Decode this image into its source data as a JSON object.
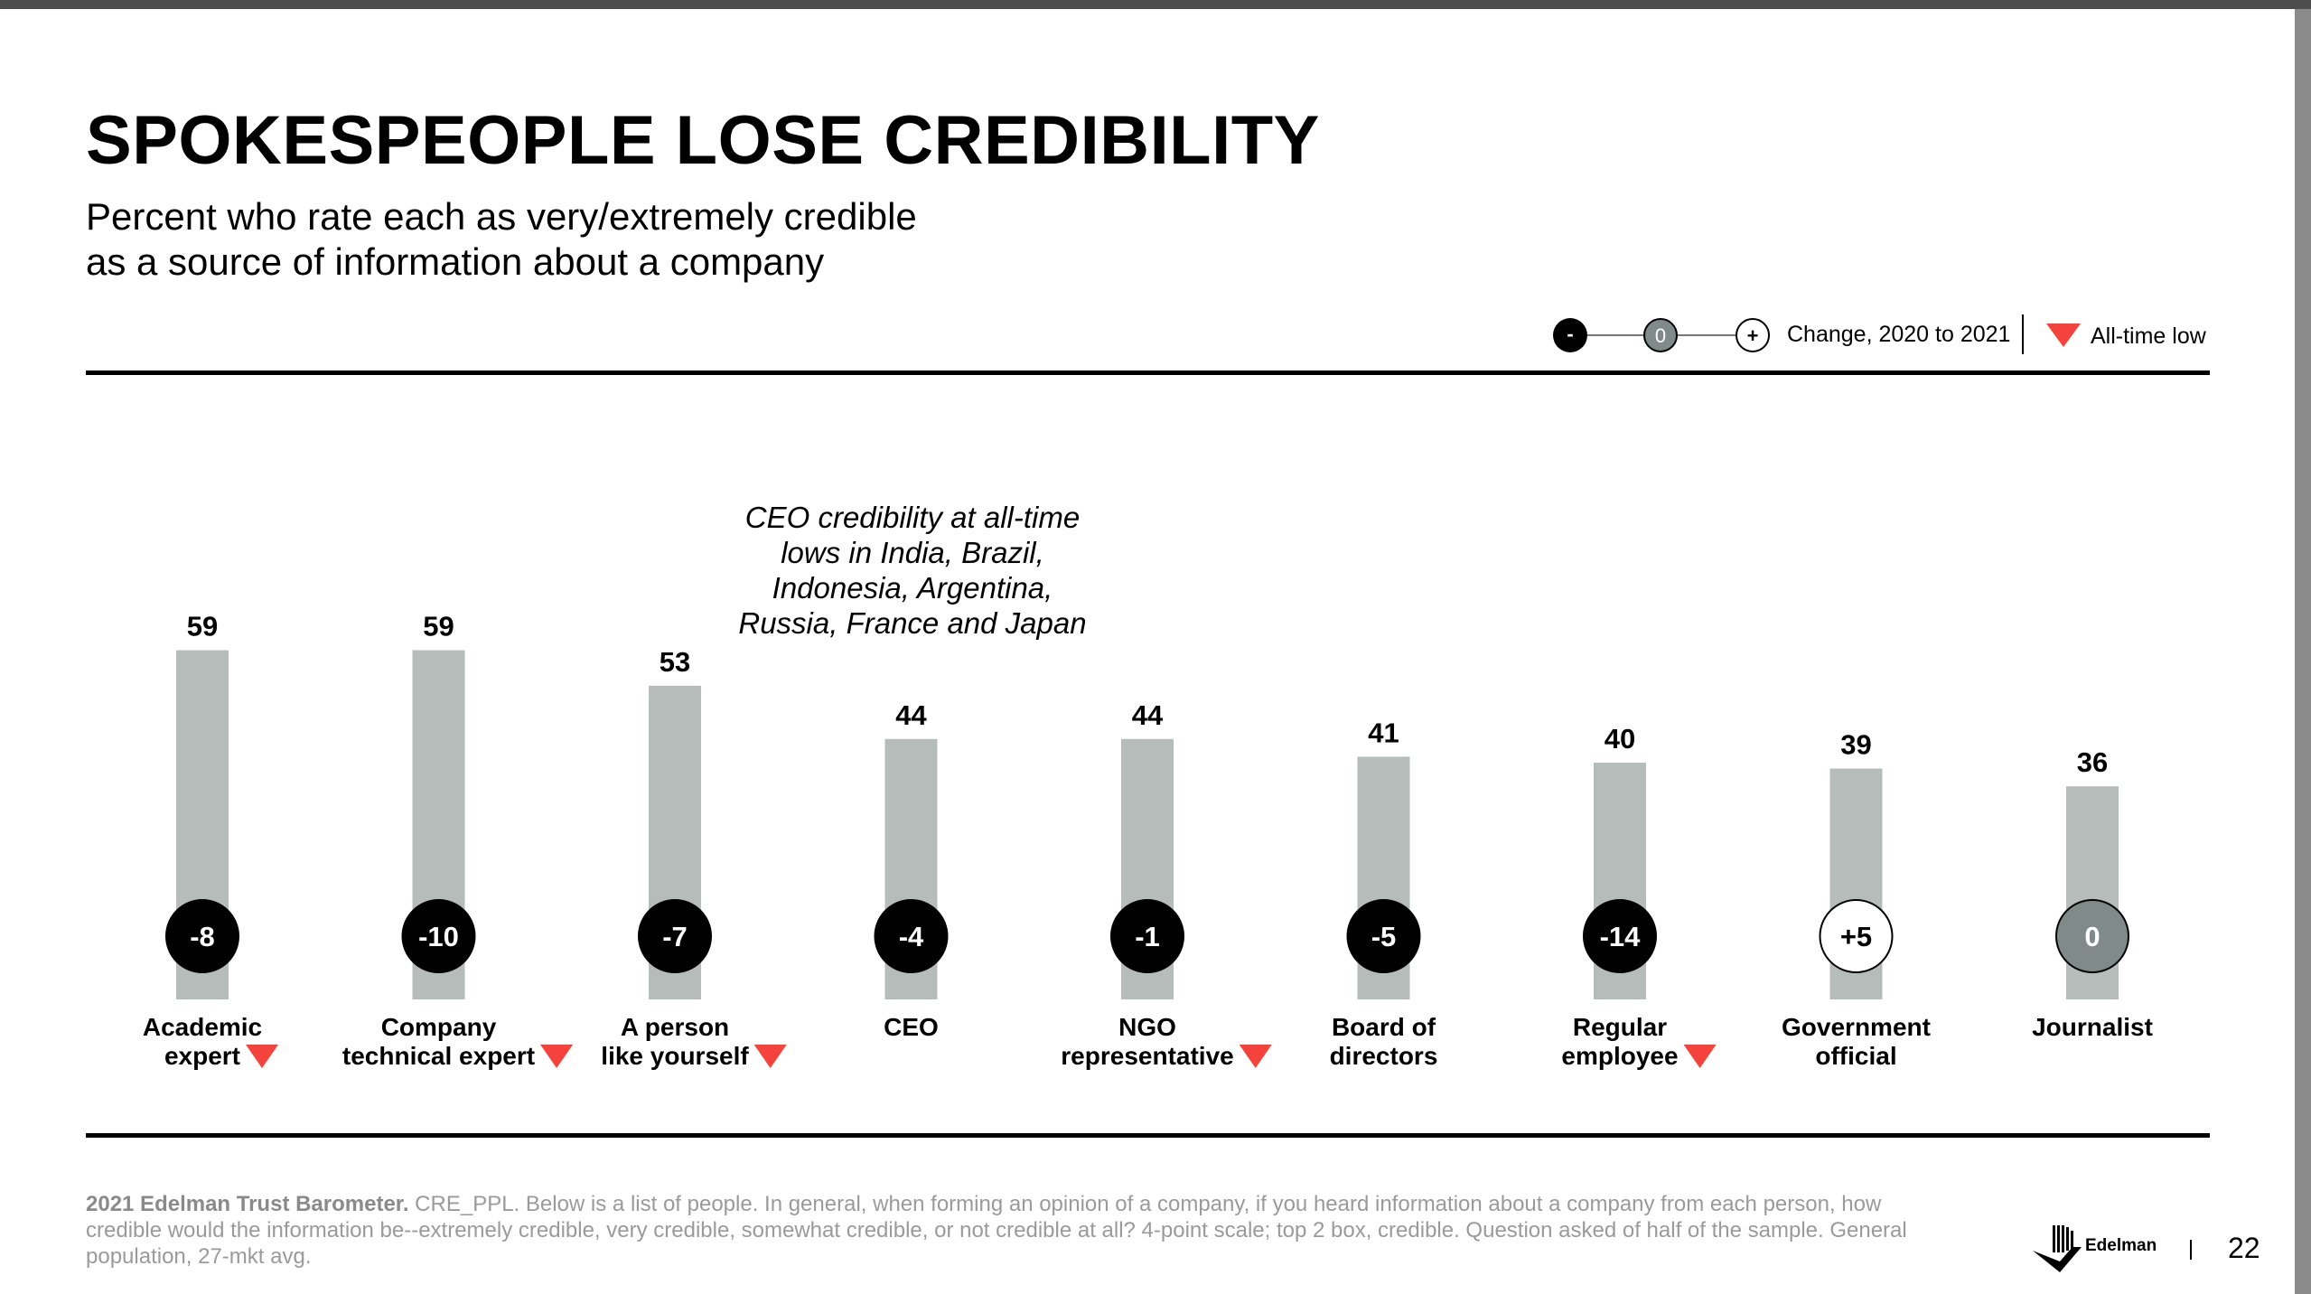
{
  "header": {
    "title": "SPOKESPEOPLE LOSE CREDIBILITY",
    "subtitle_line1": "Percent who rate each as very/extremely credible",
    "subtitle_line2": "as a source of information about a company"
  },
  "legend": {
    "neg_symbol": "-",
    "zero_symbol": "0",
    "pos_symbol": "+",
    "change_label": "Change, 2020 to 2021",
    "all_time_low_label": "All-time low"
  },
  "annotation": {
    "lines": [
      "CEO credibility at all-time",
      "lows in India, Brazil,",
      "Indonesia, Argentina,",
      "Russia, France and Japan"
    ]
  },
  "colors": {
    "bar": "#b6bcba",
    "negative_change": "#000000",
    "zero_change": "#7f8a89",
    "positive_change": "#ffffff",
    "all_time_low": "#f4433c"
  },
  "chart_data": {
    "type": "bar",
    "title": "SPOKESPEOPLE LOSE CREDIBILITY",
    "ylabel": "",
    "xlabel": "",
    "ylim": [
      0,
      100
    ],
    "categories": [
      [
        "Academic",
        "expert"
      ],
      [
        "Company",
        "technical expert"
      ],
      [
        "A person",
        "like yourself"
      ],
      [
        "CEO"
      ],
      [
        "NGO",
        "representative"
      ],
      [
        "Board of",
        "directors"
      ],
      [
        "Regular",
        "employee"
      ],
      [
        "Government",
        "official"
      ],
      [
        "Journalist"
      ]
    ],
    "values": [
      59,
      59,
      53,
      44,
      44,
      41,
      40,
      39,
      36
    ],
    "change_2020_to_2021": [
      "-8",
      "-10",
      "-7",
      "-4",
      "-1",
      "-5",
      "-14",
      "+5",
      "0"
    ],
    "all_time_low": [
      true,
      true,
      true,
      false,
      true,
      false,
      true,
      false,
      false
    ],
    "grid": false,
    "legend_position": "top-right"
  },
  "footnote": {
    "bold": "2021 Edelman Trust Barometer.",
    "text": " CRE_PPL. Below is a list of people. In general, when forming an opinion of a company, if you heard information about a company from each person, how credible would the information be--extremely credible, very credible, somewhat credible, or not credible at all? 4-point scale; top 2 box, credible. Question asked of half of the sample. General population, 27-mkt avg."
  },
  "brand": {
    "name": "Edelman",
    "icon": "edelman-logo-icon"
  },
  "page": {
    "number": "22"
  }
}
